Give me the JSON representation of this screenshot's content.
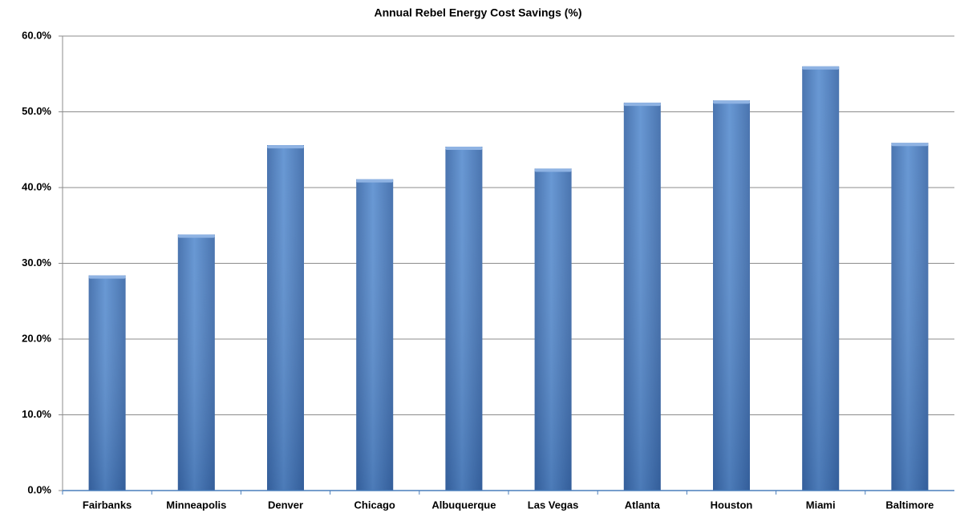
{
  "chart_data": {
    "type": "bar",
    "title": "Annual Rebel Energy Cost Savings (%)",
    "categories": [
      "Fairbanks",
      "Minneapolis",
      "Denver",
      "Chicago",
      "Albuquerque",
      "Las Vegas",
      "Atlanta",
      "Houston",
      "Miami",
      "Baltimore"
    ],
    "values": [
      28.4,
      33.8,
      45.6,
      41.1,
      45.4,
      42.5,
      51.2,
      51.5,
      56.0,
      45.9
    ],
    "color": "#4a7ebb",
    "ylim": [
      0,
      60
    ],
    "yticks": [
      {
        "value": 0,
        "label": "0.0%"
      },
      {
        "value": 10,
        "label": "10.0%"
      },
      {
        "value": 20,
        "label": "20.0%"
      },
      {
        "value": 30,
        "label": "30.0%"
      },
      {
        "value": 40,
        "label": "40.0%"
      },
      {
        "value": 50,
        "label": "50.0%"
      },
      {
        "value": 60,
        "label": "60.0%"
      }
    ],
    "grid": true
  }
}
